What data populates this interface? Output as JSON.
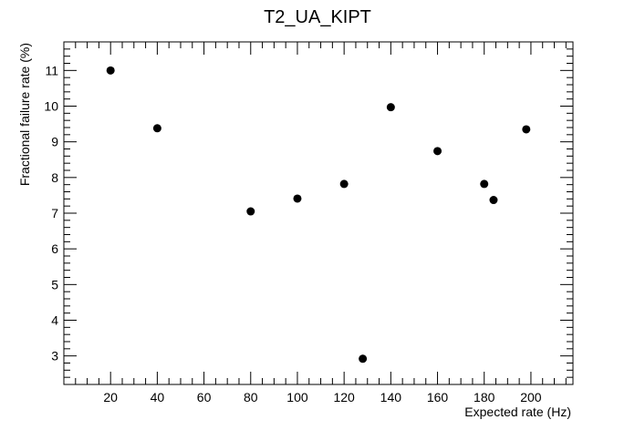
{
  "chart_data": {
    "type": "scatter",
    "title": "T2_UA_KIPT",
    "xlabel": "Expected rate (Hz)",
    "ylabel": "Fractional failure rate (%)",
    "xlim": [
      0,
      218
    ],
    "ylim": [
      2.2,
      11.8
    ],
    "x_ticks": [
      20,
      40,
      60,
      80,
      100,
      120,
      140,
      160,
      180,
      200
    ],
    "y_ticks": [
      3,
      4,
      5,
      6,
      7,
      8,
      9,
      10,
      11
    ],
    "x_tick_labels": [
      "20",
      "40",
      "60",
      "80",
      "100",
      "120",
      "140",
      "160",
      "180",
      "200"
    ],
    "y_tick_labels": [
      "3",
      "4",
      "5",
      "6",
      "7",
      "8",
      "9",
      "10",
      "11"
    ],
    "grid": false,
    "legend": "none",
    "marker_color": "#000000",
    "points": [
      {
        "x": 20,
        "y": 11.0
      },
      {
        "x": 40,
        "y": 9.38
      },
      {
        "x": 80,
        "y": 7.05
      },
      {
        "x": 100,
        "y": 7.41
      },
      {
        "x": 120,
        "y": 7.82
      },
      {
        "x": 128,
        "y": 2.92
      },
      {
        "x": 140,
        "y": 9.97
      },
      {
        "x": 160,
        "y": 8.74
      },
      {
        "x": 180,
        "y": 7.82
      },
      {
        "x": 184,
        "y": 7.37
      },
      {
        "x": 198,
        "y": 9.35
      }
    ]
  }
}
